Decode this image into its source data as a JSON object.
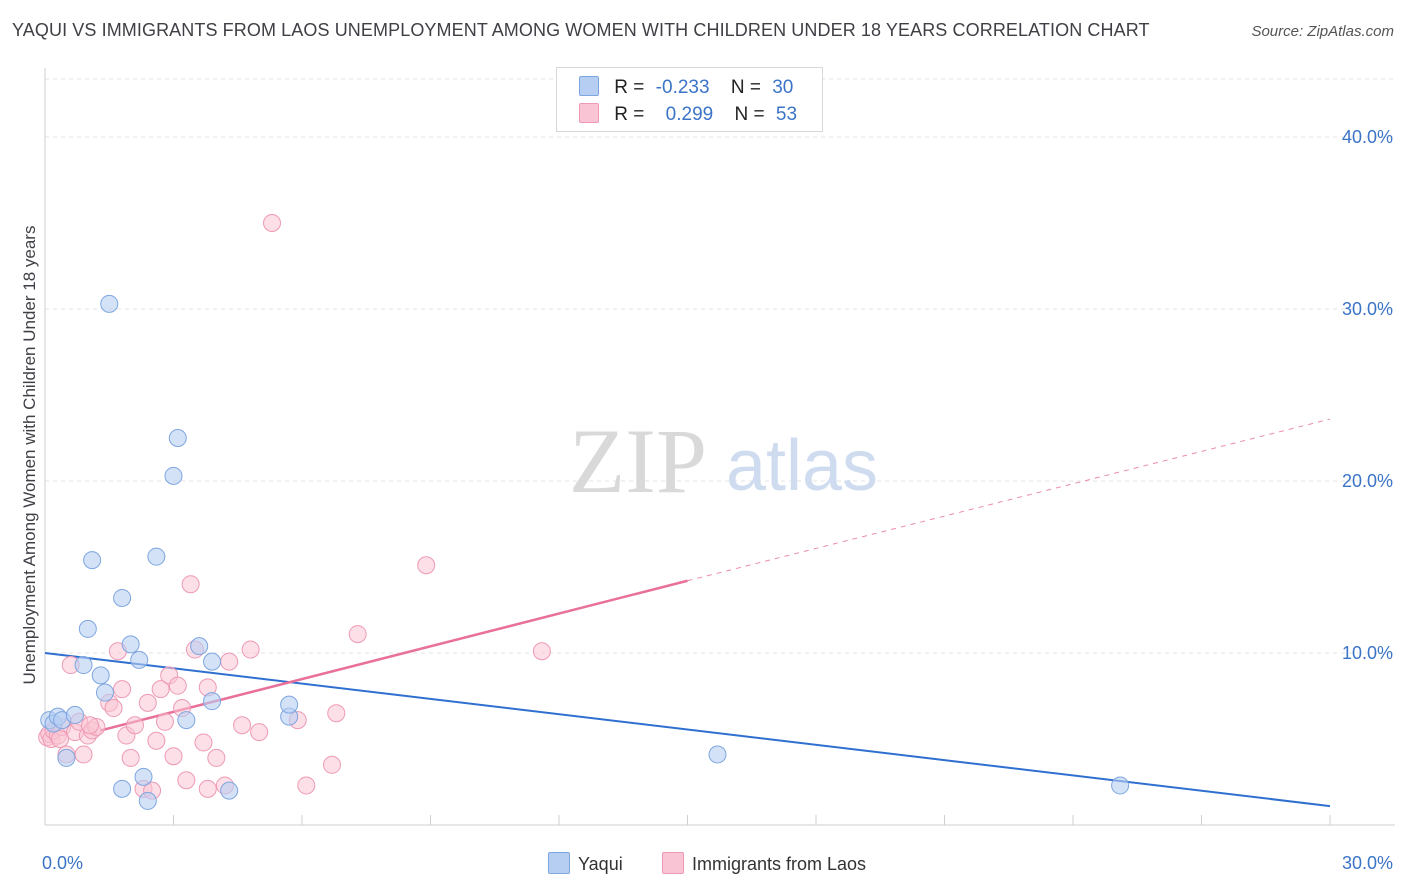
{
  "title": "YAQUI VS IMMIGRANTS FROM LAOS UNEMPLOYMENT AMONG WOMEN WITH CHILDREN UNDER 18 YEARS CORRELATION CHART",
  "source": "Source: ZipAtlas.com",
  "watermark": {
    "zip": "ZIP",
    "atlas": "atlas"
  },
  "legend_top": {
    "rows": [
      {
        "r_label": "R =",
        "r_value": "-0.233",
        "n_label": "N =",
        "n_value": "30"
      },
      {
        "r_label": "R =",
        "r_value": "0.299",
        "n_label": "N =",
        "n_value": "53"
      }
    ]
  },
  "legend_bottom": {
    "yaqui": "Yaqui",
    "laos": "Immigrants from Laos"
  },
  "colors": {
    "yaqui_fill": "#b7cef3",
    "yaqui_stroke": "#7ea6e0",
    "yaqui_line": "#2f6fd0",
    "laos_fill": "#f9c4d3",
    "laos_stroke": "#ee9ab4",
    "laos_line": "#e8709a",
    "tick": "#3b74c7"
  },
  "chart_data": {
    "type": "scatter",
    "title": "YAQUI VS IMMIGRANTS FROM LAOS UNEMPLOYMENT AMONG WOMEN WITH CHILDREN UNDER 18 YEARS CORRELATION CHART",
    "xlabel": "",
    "ylabel": "Unemployment Among Women with Children Under 18 years",
    "xlim": [
      0,
      30
    ],
    "ylim": [
      0,
      42
    ],
    "x_ticks": [
      "0.0%",
      "30.0%"
    ],
    "y_ticks": [
      {
        "value": 10,
        "label": "10.0%"
      },
      {
        "value": 20,
        "label": "20.0%"
      },
      {
        "value": 30,
        "label": "30.0%"
      },
      {
        "value": 40,
        "label": "40.0%"
      }
    ],
    "grid": true,
    "series": [
      {
        "name": "Yaqui",
        "r": -0.233,
        "n": 30,
        "trend": {
          "x": [
            0,
            30
          ],
          "y": [
            10.0,
            1.1
          ]
        },
        "points": [
          [
            0.1,
            6.1
          ],
          [
            0.2,
            5.9
          ],
          [
            0.3,
            6.3
          ],
          [
            0.4,
            6.1
          ],
          [
            0.5,
            3.9
          ],
          [
            0.7,
            6.4
          ],
          [
            0.9,
            9.3
          ],
          [
            1.0,
            11.4
          ],
          [
            1.1,
            15.4
          ],
          [
            1.3,
            8.7
          ],
          [
            1.4,
            7.7
          ],
          [
            1.5,
            30.3
          ],
          [
            1.8,
            13.2
          ],
          [
            1.8,
            2.1
          ],
          [
            2.0,
            10.5
          ],
          [
            2.2,
            9.6
          ],
          [
            2.3,
            2.8
          ],
          [
            2.4,
            1.4
          ],
          [
            2.6,
            15.6
          ],
          [
            3.0,
            20.3
          ],
          [
            3.1,
            22.5
          ],
          [
            3.3,
            6.1
          ],
          [
            3.6,
            10.4
          ],
          [
            3.9,
            7.2
          ],
          [
            3.9,
            9.5
          ],
          [
            4.3,
            2.0
          ],
          [
            5.7,
            6.3
          ],
          [
            5.7,
            7.0
          ],
          [
            15.7,
            4.1
          ],
          [
            25.1,
            2.3
          ]
        ]
      },
      {
        "name": "Immigrants from Laos",
        "r": 0.299,
        "n": 53,
        "trend": {
          "x": [
            1.3,
            15.0
          ],
          "y": [
            5.5,
            14.2
          ]
        },
        "trend_dashed": {
          "x": [
            15.0,
            30.0
          ],
          "y": [
            14.2,
            23.6
          ]
        },
        "points": [
          [
            0.05,
            5.1
          ],
          [
            0.1,
            5.3
          ],
          [
            0.15,
            5.0
          ],
          [
            0.2,
            5.5
          ],
          [
            0.3,
            5.2
          ],
          [
            0.4,
            5.7
          ],
          [
            0.5,
            4.1
          ],
          [
            0.6,
            9.3
          ],
          [
            0.7,
            5.4
          ],
          [
            0.8,
            6.0
          ],
          [
            0.9,
            4.1
          ],
          [
            1.0,
            5.2
          ],
          [
            1.1,
            5.5
          ],
          [
            1.2,
            5.7
          ],
          [
            1.5,
            7.1
          ],
          [
            1.6,
            6.8
          ],
          [
            1.7,
            10.1
          ],
          [
            1.8,
            7.9
          ],
          [
            1.9,
            5.2
          ],
          [
            2.0,
            3.9
          ],
          [
            2.1,
            5.8
          ],
          [
            2.3,
            2.1
          ],
          [
            2.4,
            7.1
          ],
          [
            2.5,
            2.0
          ],
          [
            2.6,
            4.9
          ],
          [
            2.7,
            7.9
          ],
          [
            2.8,
            6.0
          ],
          [
            2.9,
            8.7
          ],
          [
            3.0,
            4.0
          ],
          [
            3.1,
            8.1
          ],
          [
            3.2,
            6.8
          ],
          [
            3.3,
            2.6
          ],
          [
            3.4,
            14.0
          ],
          [
            3.5,
            10.2
          ],
          [
            3.7,
            4.8
          ],
          [
            3.8,
            8.0
          ],
          [
            3.8,
            2.1
          ],
          [
            4.0,
            3.9
          ],
          [
            4.2,
            2.3
          ],
          [
            4.3,
            9.5
          ],
          [
            4.6,
            5.8
          ],
          [
            4.8,
            10.2
          ],
          [
            5.0,
            5.4
          ],
          [
            5.3,
            35.0
          ],
          [
            5.9,
            6.1
          ],
          [
            6.1,
            2.3
          ],
          [
            6.7,
            3.5
          ],
          [
            6.8,
            6.5
          ],
          [
            7.3,
            11.1
          ],
          [
            8.9,
            15.1
          ],
          [
            11.6,
            10.1
          ],
          [
            0.35,
            5.0
          ],
          [
            1.05,
            5.8
          ]
        ]
      }
    ]
  }
}
